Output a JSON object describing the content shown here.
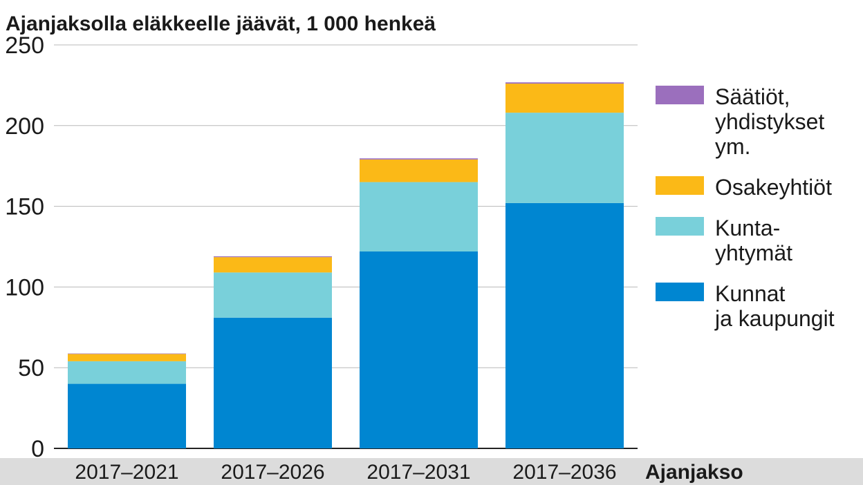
{
  "chart_data": {
    "type": "bar",
    "stacked": true,
    "title": "Ajanjaksolla eläkkeelle jäävät, 1 000 henkeä",
    "xlabel": "Ajanjakso",
    "ylabel": "",
    "ylim": [
      0,
      250
    ],
    "yticks": [
      0,
      50,
      100,
      150,
      200,
      250
    ],
    "grid": true,
    "legend_position": "right",
    "categories": [
      "2017–2021",
      "2017–2026",
      "2017–2031",
      "2017–2036"
    ],
    "series": [
      {
        "name": "Kunnat ja kaupungit",
        "legend_lines": [
          "Kunnat",
          "ja kaupungit"
        ],
        "color": "#0086d1",
        "values": [
          40,
          81,
          122,
          152
        ]
      },
      {
        "name": "Kuntayhtymät",
        "legend_lines": [
          "Kunta-",
          "yhtymät"
        ],
        "color": "#79d0da",
        "values": [
          14,
          28,
          43,
          56
        ]
      },
      {
        "name": "Osakeyhtiöt",
        "legend_lines": [
          "Osakeyhtiöt"
        ],
        "color": "#fbb917",
        "values": [
          4.5,
          9.5,
          14,
          18
        ]
      },
      {
        "name": "Säätiöt, yhdistykset ym.",
        "legend_lines": [
          "Säätiöt,",
          "yhdistykset",
          "ym."
        ],
        "color": "#9b6fbd",
        "values": [
          0.3,
          0.5,
          0.7,
          0.8
        ]
      }
    ]
  }
}
